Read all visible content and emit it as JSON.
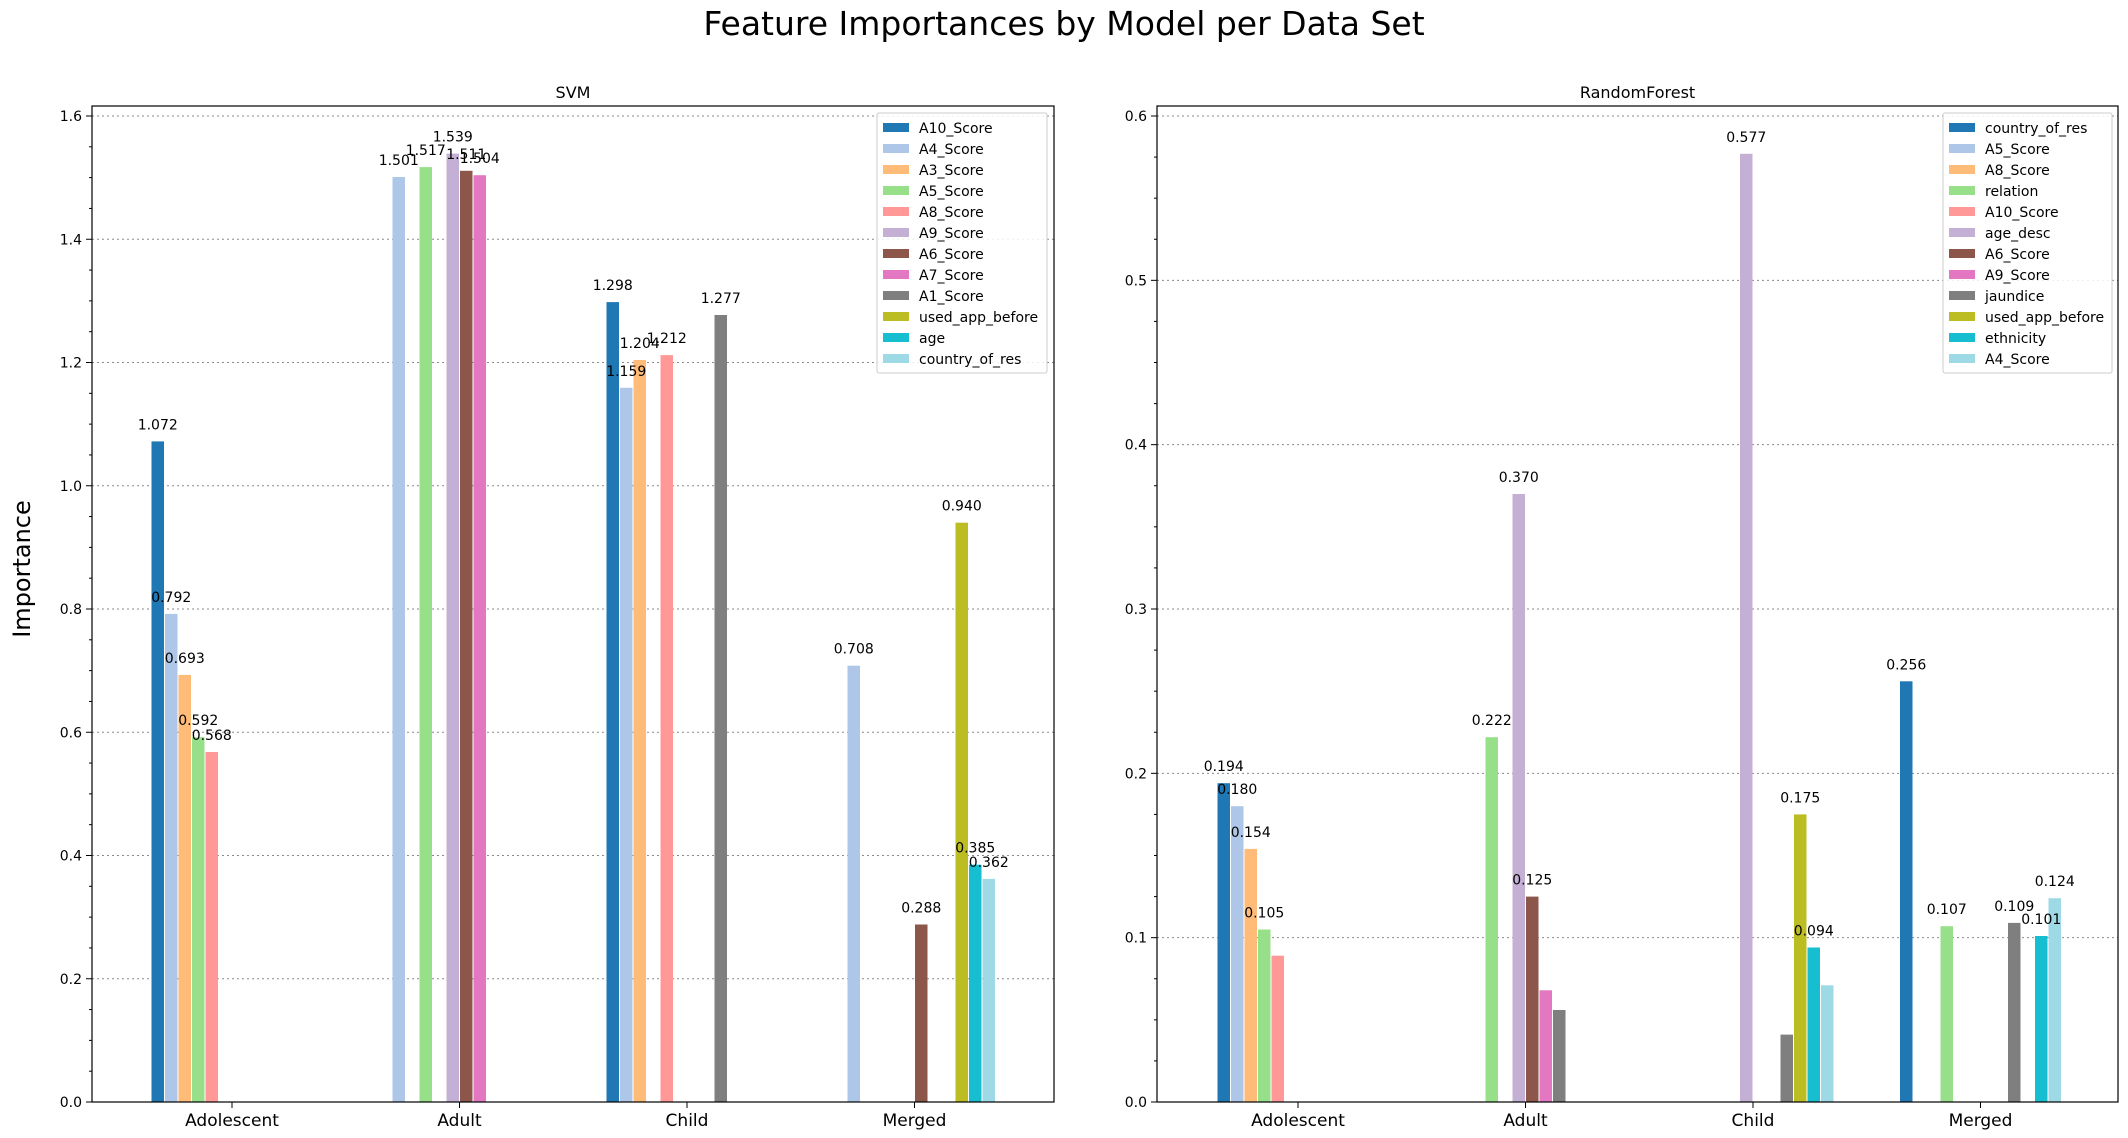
{
  "figure": {
    "title": "Feature Importances by Model per Data Set",
    "ylabel": "Importance"
  },
  "chart_data": [
    {
      "type": "bar",
      "title": "SVM",
      "xlabel": "",
      "ylabel": "Importance",
      "ylim": [
        0,
        1.6
      ],
      "yticks": [
        0.0,
        0.2,
        0.4,
        0.6,
        0.8,
        1.0,
        1.2,
        1.4,
        1.6
      ],
      "grid": "y-dotted",
      "legend_position": "top-right",
      "categories": [
        "Adolescent",
        "Adult",
        "Child",
        "Merged"
      ],
      "series": [
        {
          "name": "A10_Score",
          "color": "#1f77b4",
          "values": [
            1.072,
            null,
            1.298,
            null
          ]
        },
        {
          "name": "A4_Score",
          "color": "#aec7e8",
          "values": [
            0.792,
            1.501,
            1.159,
            0.708
          ]
        },
        {
          "name": "A3_Score",
          "color": "#ffbb78",
          "values": [
            0.693,
            null,
            1.204,
            null
          ]
        },
        {
          "name": "A5_Score",
          "color": "#98df8a",
          "values": [
            0.592,
            1.517,
            null,
            null
          ]
        },
        {
          "name": "A8_Score",
          "color": "#ff9896",
          "values": [
            0.568,
            null,
            1.212,
            null
          ]
        },
        {
          "name": "A9_Score",
          "color": "#c5b0d5",
          "values": [
            null,
            1.539,
            null,
            null
          ]
        },
        {
          "name": "A6_Score",
          "color": "#8c564b",
          "values": [
            null,
            1.511,
            null,
            0.288
          ]
        },
        {
          "name": "A7_Score",
          "color": "#e377c2",
          "values": [
            null,
            1.504,
            null,
            null
          ]
        },
        {
          "name": "A1_Score",
          "color": "#7f7f7f",
          "values": [
            null,
            null,
            1.277,
            null
          ]
        },
        {
          "name": "used_app_before",
          "color": "#bcbd22",
          "values": [
            null,
            null,
            null,
            0.94
          ]
        },
        {
          "name": "age",
          "color": "#17becf",
          "values": [
            null,
            null,
            null,
            0.385
          ]
        },
        {
          "name": "country_of_res",
          "color": "#9edae5",
          "values": [
            null,
            null,
            null,
            0.362
          ]
        }
      ],
      "labels": [
        [
          0,
          0,
          "1.072"
        ],
        [
          0,
          1,
          "0.792"
        ],
        [
          0,
          2,
          "0.693"
        ],
        [
          0,
          3,
          "0.592"
        ],
        [
          0,
          4,
          "0.568"
        ],
        [
          1,
          1,
          "1.501"
        ],
        [
          1,
          3,
          "1.517"
        ],
        [
          1,
          5,
          "1.539"
        ],
        [
          1,
          6,
          "1.511"
        ],
        [
          1,
          7,
          "1.504"
        ],
        [
          2,
          0,
          "1.298"
        ],
        [
          2,
          1,
          "1.159"
        ],
        [
          2,
          2,
          "1.204"
        ],
        [
          2,
          4,
          "1.212"
        ],
        [
          2,
          8,
          "1.277"
        ],
        [
          3,
          1,
          "0.708"
        ],
        [
          3,
          6,
          "0.288"
        ],
        [
          3,
          9,
          "0.940"
        ],
        [
          3,
          10,
          "0.385"
        ],
        [
          3,
          11,
          "0.362"
        ]
      ]
    },
    {
      "type": "bar",
      "title": "RandomForest",
      "xlabel": "",
      "ylabel": "",
      "ylim": [
        0,
        0.6
      ],
      "yticks": [
        0.0,
        0.1,
        0.2,
        0.3,
        0.4,
        0.5,
        0.6
      ],
      "grid": "y-dotted",
      "legend_position": "top-right",
      "categories": [
        "Adolescent",
        "Adult",
        "Child",
        "Merged"
      ],
      "series": [
        {
          "name": "country_of_res",
          "color": "#1f77b4",
          "values": [
            0.194,
            null,
            null,
            0.256
          ]
        },
        {
          "name": "A5_Score",
          "color": "#aec7e8",
          "values": [
            0.18,
            null,
            null,
            null
          ]
        },
        {
          "name": "A8_Score",
          "color": "#ffbb78",
          "values": [
            0.154,
            null,
            null,
            null
          ]
        },
        {
          "name": "relation",
          "color": "#98df8a",
          "values": [
            0.105,
            0.222,
            null,
            0.107
          ]
        },
        {
          "name": "A10_Score",
          "color": "#ff9896",
          "values": [
            0.089,
            null,
            null,
            null
          ]
        },
        {
          "name": "age_desc",
          "color": "#c5b0d5",
          "values": [
            null,
            0.37,
            0.577,
            null
          ]
        },
        {
          "name": "A6_Score",
          "color": "#8c564b",
          "values": [
            null,
            0.125,
            null,
            null
          ]
        },
        {
          "name": "A9_Score",
          "color": "#e377c2",
          "values": [
            null,
            0.068,
            null,
            null
          ]
        },
        {
          "name": "jaundice",
          "color": "#7f7f7f",
          "values": [
            null,
            0.056,
            0.041,
            0.109
          ]
        },
        {
          "name": "used_app_before",
          "color": "#bcbd22",
          "values": [
            null,
            null,
            0.175,
            null
          ]
        },
        {
          "name": "ethnicity",
          "color": "#17becf",
          "values": [
            null,
            null,
            0.094,
            0.101
          ]
        },
        {
          "name": "A4_Score",
          "color": "#9edae5",
          "values": [
            null,
            null,
            0.071,
            0.124
          ]
        }
      ],
      "labels": [
        [
          0,
          0,
          "0.194"
        ],
        [
          0,
          1,
          "0.180"
        ],
        [
          0,
          2,
          "0.154"
        ],
        [
          0,
          3,
          "0.105"
        ],
        [
          1,
          3,
          "0.222"
        ],
        [
          1,
          5,
          "0.370"
        ],
        [
          1,
          6,
          "0.125"
        ],
        [
          2,
          5,
          "0.577"
        ],
        [
          2,
          9,
          "0.175"
        ],
        [
          2,
          10,
          "0.094"
        ],
        [
          3,
          0,
          "0.256"
        ],
        [
          3,
          3,
          "0.107"
        ],
        [
          3,
          8,
          "0.109"
        ],
        [
          3,
          10,
          "0.101"
        ],
        [
          3,
          11,
          "0.124"
        ]
      ]
    }
  ]
}
